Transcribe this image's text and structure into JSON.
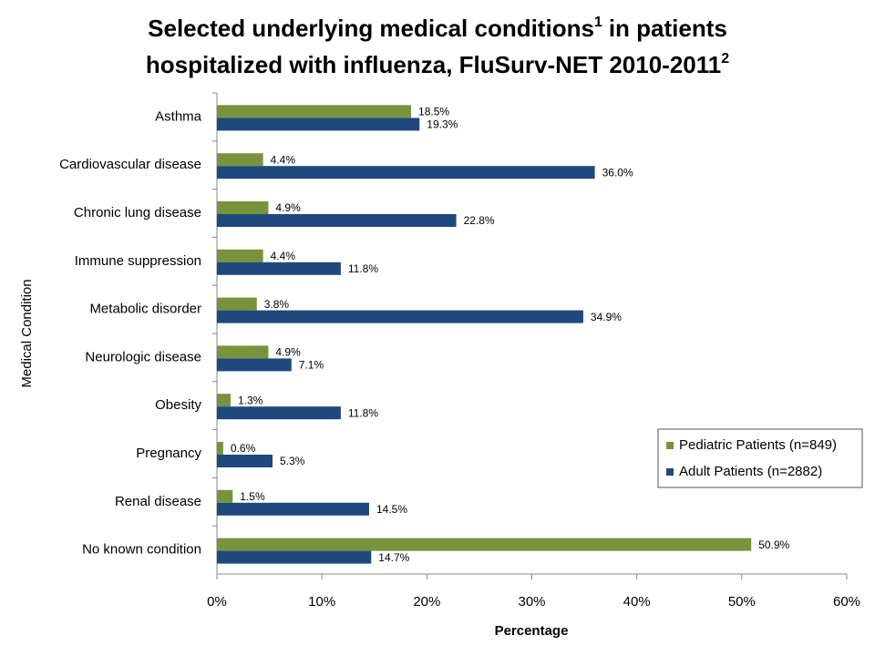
{
  "chart_data": {
    "type": "hbar",
    "title_parts": [
      {
        "text": "Selected underlying medical conditions",
        "sup": false,
        "line": 0
      },
      {
        "text": "1",
        "sup": true,
        "line": 0
      },
      {
        "text": "in patients",
        "sup": false,
        "line": 0
      },
      {
        "text": "hospitalized with influenza, FluSurv-NET 2010-2011",
        "sup": false,
        "line": 1
      },
      {
        "text": "2",
        "sup": true,
        "line": 1
      }
    ],
    "x_label": "Percentage",
    "y_label": "Medical Condition",
    "categories": [
      "Asthma",
      "Cardiovascular disease",
      "Chronic lung disease",
      "Immune suppression",
      "Metabolic disorder",
      "Neurologic disease",
      "Obesity",
      "Pregnancy",
      "Renal disease",
      "No known condition"
    ],
    "series": [
      {
        "name": "Pediatric Patients (n=849)",
        "color": "#77933c",
        "values": [
          18.5,
          4.4,
          4.9,
          4.4,
          3.8,
          4.9,
          1.3,
          0.6,
          1.5,
          50.9
        ],
        "value_labels": [
          "18.5%",
          "4.4%",
          "4.9%",
          "4.4%",
          "3.8%",
          "4.9%",
          "1.3%",
          "0.6%",
          "1.5%",
          "50.9%"
        ]
      },
      {
        "name": "Adult Patients (n=2882)",
        "color": "#1f497d",
        "values": [
          19.3,
          36.0,
          22.8,
          11.8,
          34.9,
          7.1,
          11.8,
          5.3,
          14.5,
          14.7
        ],
        "value_labels": [
          "19.3%",
          "36.0%",
          "22.8%",
          "11.8%",
          "34.9%",
          "7.1%",
          "11.8%",
          "5.3%",
          "14.5%",
          "14.7%"
        ]
      }
    ],
    "xlim": [
      0,
      60
    ],
    "xticks": [
      {
        "value": 0,
        "label": "0%"
      },
      {
        "value": 10,
        "label": "10%"
      },
      {
        "value": 20,
        "label": "20%"
      },
      {
        "value": 30,
        "label": "30%"
      },
      {
        "value": 40,
        "label": "40%"
      },
      {
        "value": 50,
        "label": "50%"
      },
      {
        "value": 60,
        "label": "60%"
      }
    ],
    "legend": "right"
  }
}
